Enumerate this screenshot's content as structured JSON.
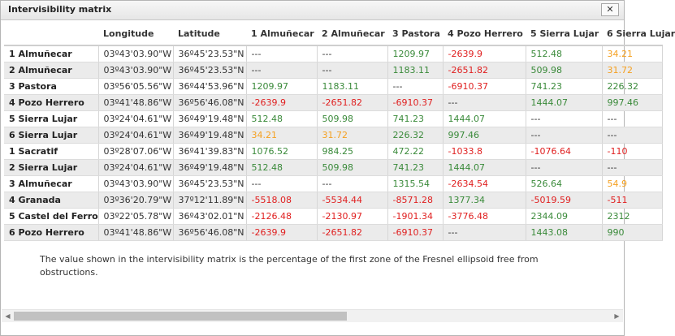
{
  "dialog": {
    "title": "Intervisibility matrix",
    "close_label": "✕"
  },
  "table": {
    "headers": [
      "",
      "Longitude",
      "Latitude",
      "1 Almuñecar",
      "2 Almuñecar",
      "3 Pastora",
      "4 Pozo Herrero",
      "5 Sierra Lujar",
      "6 Sierra Lujar"
    ],
    "rows": [
      {
        "name": "1 Almuñecar",
        "lon": "03º43'03.90\"W",
        "lat": "36º45'23.53\"N",
        "cells": [
          "---",
          "---",
          "1209.97",
          "-2639.9",
          "512.48",
          "34.21"
        ],
        "types": [
          "dash",
          "dash",
          "pos",
          "neg",
          "pos",
          "warn"
        ]
      },
      {
        "name": "2 Almuñecar",
        "lon": "03º43'03.90\"W",
        "lat": "36º45'23.53\"N",
        "cells": [
          "---",
          "---",
          "1183.11",
          "-2651.82",
          "509.98",
          "31.72"
        ],
        "types": [
          "dash",
          "dash",
          "pos",
          "neg",
          "pos",
          "warn"
        ]
      },
      {
        "name": "3 Pastora",
        "lon": "03º56'05.56\"W",
        "lat": "36º44'53.96\"N",
        "cells": [
          "1209.97",
          "1183.11",
          "---",
          "-6910.37",
          "741.23",
          "226.32"
        ],
        "types": [
          "pos",
          "pos",
          "dash",
          "neg",
          "pos",
          "pos"
        ]
      },
      {
        "name": "4 Pozo Herrero",
        "lon": "03º41'48.86\"W",
        "lat": "36º56'46.08\"N",
        "cells": [
          "-2639.9",
          "-2651.82",
          "-6910.37",
          "---",
          "1444.07",
          "997.46"
        ],
        "types": [
          "neg",
          "neg",
          "neg",
          "dash",
          "pos",
          "pos"
        ]
      },
      {
        "name": "5 Sierra Lujar",
        "lon": "03º24'04.61\"W",
        "lat": "36º49'19.48\"N",
        "cells": [
          "512.48",
          "509.98",
          "741.23",
          "1444.07",
          "---",
          "---"
        ],
        "types": [
          "pos",
          "pos",
          "pos",
          "pos",
          "dash",
          "dash"
        ]
      },
      {
        "name": "6 Sierra Lujar",
        "lon": "03º24'04.61\"W",
        "lat": "36º49'19.48\"N",
        "cells": [
          "34.21",
          "31.72",
          "226.32",
          "997.46",
          "---",
          "---"
        ],
        "types": [
          "warn",
          "warn",
          "pos",
          "pos",
          "dash",
          "dash"
        ]
      },
      {
        "name": "1 Sacratif",
        "lon": "03º28'07.06\"W",
        "lat": "36º41'39.83\"N",
        "cells": [
          "1076.52",
          "984.25",
          "472.22",
          "-1033.8",
          "-1076.64",
          "-110"
        ],
        "types": [
          "pos",
          "pos",
          "pos",
          "neg",
          "neg",
          "neg"
        ]
      },
      {
        "name": "2 Sierra Lujar",
        "lon": "03º24'04.61\"W",
        "lat": "36º49'19.48\"N",
        "cells": [
          "512.48",
          "509.98",
          "741.23",
          "1444.07",
          "---",
          "---"
        ],
        "types": [
          "pos",
          "pos",
          "pos",
          "pos",
          "dash",
          "dash"
        ]
      },
      {
        "name": "3 Almuñecar",
        "lon": "03º43'03.90\"W",
        "lat": "36º45'23.53\"N",
        "cells": [
          "---",
          "---",
          "1315.54",
          "-2634.54",
          "526.64",
          "54.9"
        ],
        "types": [
          "dash",
          "dash",
          "pos",
          "neg",
          "pos",
          "warn"
        ]
      },
      {
        "name": "4 Granada",
        "lon": "03º36'20.79\"W",
        "lat": "37º12'11.89\"N",
        "cells": [
          "-5518.08",
          "-5534.44",
          "-8571.28",
          "1377.34",
          "-5019.59",
          "-511"
        ],
        "types": [
          "neg",
          "neg",
          "neg",
          "pos",
          "neg",
          "neg"
        ]
      },
      {
        "name": "5 Castel del Ferro",
        "lon": "03º22'05.78\"W",
        "lat": "36º43'02.01\"N",
        "cells": [
          "-2126.48",
          "-2130.97",
          "-1901.34",
          "-3776.48",
          "2344.09",
          "2312"
        ],
        "types": [
          "neg",
          "neg",
          "neg",
          "neg",
          "pos",
          "pos"
        ]
      },
      {
        "name": "6 Pozo Herrero",
        "lon": "03º41'48.86\"W",
        "lat": "36º56'46.08\"N",
        "cells": [
          "-2639.9",
          "-2651.82",
          "-6910.37",
          "---",
          "1443.08",
          "990"
        ],
        "types": [
          "neg",
          "neg",
          "neg",
          "dash",
          "pos",
          "pos"
        ]
      }
    ]
  },
  "note": "The value shown in the intervisibility matrix is the percentage of the first zone of the Fresnel ellipsoid free from obstructions.",
  "scrollbar": {
    "left_arrow": "◀",
    "right_arrow": "▶"
  },
  "colors": {
    "positive": "#3a8a3a",
    "negative": "#e02020",
    "marginal": "#f5a020",
    "alt_row": "#ebebeb"
  }
}
